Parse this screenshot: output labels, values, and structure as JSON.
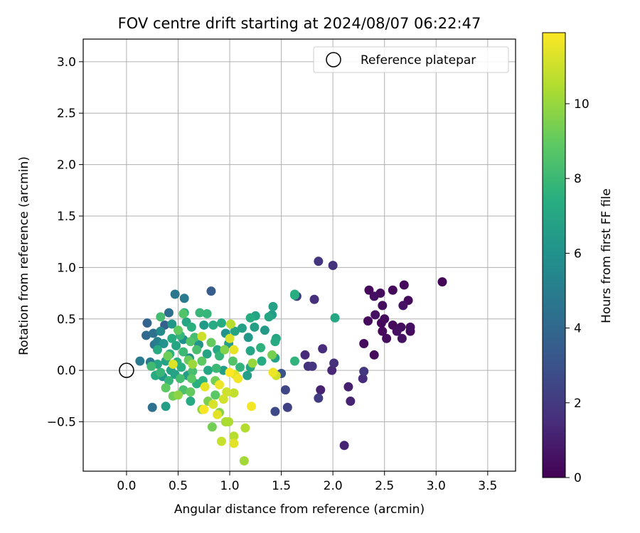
{
  "chart_data": {
    "type": "scatter",
    "title": "FOV centre drift starting at 2024/08/07 06:22:47",
    "xlabel": "Angular distance from reference (arcmin)",
    "ylabel": "Rotation from reference (arcmin)",
    "xlim": [
      -0.42,
      3.77
    ],
    "ylim": [
      -0.98,
      3.22
    ],
    "xticks": [
      "0.0",
      "0.5",
      "1.0",
      "1.5",
      "2.0",
      "2.5",
      "3.0",
      "3.5"
    ],
    "xtick_values": [
      0.0,
      0.5,
      1.0,
      1.5,
      2.0,
      2.5,
      3.0,
      3.5
    ],
    "yticks": [
      "−0.5",
      "0.0",
      "0.5",
      "1.0",
      "1.5",
      "2.0",
      "2.5",
      "3.0"
    ],
    "ytick_values": [
      -0.5,
      0.0,
      0.5,
      1.0,
      1.5,
      2.0,
      2.5,
      3.0
    ],
    "grid": true,
    "legend": {
      "placement": "top-right",
      "entries": [
        {
          "label": "Reference platepar",
          "marker": "open-circle"
        }
      ]
    },
    "reference_point": {
      "x": 0.0,
      "y": 0.0
    },
    "colorbar": {
      "label": "Hours from first FF file",
      "colormap": "viridis",
      "range": [
        0,
        11.9
      ],
      "ticks": [
        "0",
        "2",
        "4",
        "6",
        "8",
        "10"
      ],
      "tick_values": [
        0,
        2,
        4,
        6,
        8,
        10
      ]
    },
    "points": [
      {
        "x": 3.06,
        "y": 0.86,
        "h": 0.1
      },
      {
        "x": 2.35,
        "y": 0.78,
        "h": 0.3
      },
      {
        "x": 2.46,
        "y": 0.75,
        "h": 0.4
      },
      {
        "x": 2.58,
        "y": 0.78,
        "h": 0.2
      },
      {
        "x": 2.69,
        "y": 0.83,
        "h": 0.2
      },
      {
        "x": 2.4,
        "y": 0.72,
        "h": 0.5
      },
      {
        "x": 2.73,
        "y": 0.68,
        "h": 0.3
      },
      {
        "x": 2.48,
        "y": 0.63,
        "h": 0.4
      },
      {
        "x": 2.68,
        "y": 0.63,
        "h": 0.6
      },
      {
        "x": 2.41,
        "y": 0.54,
        "h": 0.5
      },
      {
        "x": 2.5,
        "y": 0.5,
        "h": 0.3
      },
      {
        "x": 2.34,
        "y": 0.48,
        "h": 0.3
      },
      {
        "x": 2.47,
        "y": 0.46,
        "h": 0.2
      },
      {
        "x": 2.58,
        "y": 0.44,
        "h": 0.3
      },
      {
        "x": 2.66,
        "y": 0.42,
        "h": 0.4
      },
      {
        "x": 2.75,
        "y": 0.42,
        "h": 0.5
      },
      {
        "x": 2.48,
        "y": 0.38,
        "h": 0.3
      },
      {
        "x": 2.62,
        "y": 0.38,
        "h": 0.5
      },
      {
        "x": 2.75,
        "y": 0.38,
        "h": 0.3
      },
      {
        "x": 2.52,
        "y": 0.31,
        "h": 0.4
      },
      {
        "x": 2.67,
        "y": 0.31,
        "h": 0.6
      },
      {
        "x": 2.3,
        "y": 0.26,
        "h": 0.3
      },
      {
        "x": 2.4,
        "y": 0.15,
        "h": 0.3
      },
      {
        "x": 1.86,
        "y": 1.06,
        "h": 1.8
      },
      {
        "x": 2.0,
        "y": 1.02,
        "h": 1.7
      },
      {
        "x": 1.65,
        "y": 0.72,
        "h": 2.0
      },
      {
        "x": 1.82,
        "y": 0.69,
        "h": 1.6
      },
      {
        "x": 1.9,
        "y": 0.21,
        "h": 1.5
      },
      {
        "x": 1.73,
        "y": 0.15,
        "h": 1.4
      },
      {
        "x": 2.01,
        "y": 0.07,
        "h": 1.6
      },
      {
        "x": 1.76,
        "y": 0.04,
        "h": 1.7
      },
      {
        "x": 1.8,
        "y": 0.04,
        "h": 1.8
      },
      {
        "x": 1.99,
        "y": 0.0,
        "h": 1.3
      },
      {
        "x": 2.3,
        "y": -0.01,
        "h": 1.9
      },
      {
        "x": 2.29,
        "y": -0.08,
        "h": 1.5
      },
      {
        "x": 2.15,
        "y": -0.16,
        "h": 1.0
      },
      {
        "x": 1.88,
        "y": -0.19,
        "h": 1.1
      },
      {
        "x": 2.17,
        "y": -0.3,
        "h": 1.2
      },
      {
        "x": 1.86,
        "y": -0.27,
        "h": 2.1
      },
      {
        "x": 2.11,
        "y": -0.73,
        "h": 1.2
      },
      {
        "x": 1.54,
        "y": -0.19,
        "h": 2.5
      },
      {
        "x": 1.56,
        "y": -0.36,
        "h": 2.3
      },
      {
        "x": 1.44,
        "y": -0.4,
        "h": 2.6
      },
      {
        "x": 1.5,
        "y": -0.03,
        "h": 3.0
      },
      {
        "x": 0.82,
        "y": 0.77,
        "h": 3.5
      },
      {
        "x": 0.47,
        "y": 0.74,
        "h": 4.7
      },
      {
        "x": 0.56,
        "y": 0.7,
        "h": 4.9
      },
      {
        "x": 0.41,
        "y": 0.56,
        "h": 4.3
      },
      {
        "x": 0.2,
        "y": 0.46,
        "h": 3.8
      },
      {
        "x": 0.37,
        "y": 0.44,
        "h": 3.6
      },
      {
        "x": 0.19,
        "y": 0.34,
        "h": 4.1
      },
      {
        "x": 0.26,
        "y": 0.36,
        "h": 4.4
      },
      {
        "x": 0.27,
        "y": 0.25,
        "h": 4.6
      },
      {
        "x": 0.13,
        "y": 0.09,
        "h": 4.9
      },
      {
        "x": 0.23,
        "y": 0.08,
        "h": 4.8
      },
      {
        "x": 0.25,
        "y": -0.36,
        "h": 4.4
      },
      {
        "x": 0.38,
        "y": -0.35,
        "h": 6.6
      },
      {
        "x": 0.33,
        "y": 0.52,
        "h": 8.2
      },
      {
        "x": 1.63,
        "y": 0.74,
        "h": 7.4
      },
      {
        "x": 1.63,
        "y": 0.73,
        "h": 7.2
      },
      {
        "x": 1.42,
        "y": 0.62,
        "h": 6.8
      },
      {
        "x": 1.38,
        "y": 0.52,
        "h": 7.0
      },
      {
        "x": 1.41,
        "y": 0.54,
        "h": 6.5
      },
      {
        "x": 1.2,
        "y": 0.51,
        "h": 7.3
      },
      {
        "x": 1.25,
        "y": 0.53,
        "h": 6.9
      },
      {
        "x": 2.02,
        "y": 0.51,
        "h": 7.1
      },
      {
        "x": 1.12,
        "y": 0.41,
        "h": 6.7
      },
      {
        "x": 1.24,
        "y": 0.42,
        "h": 6.6
      },
      {
        "x": 1.34,
        "y": 0.39,
        "h": 6.4
      },
      {
        "x": 1.45,
        "y": 0.31,
        "h": 7.0
      },
      {
        "x": 1.44,
        "y": 0.28,
        "h": 7.2
      },
      {
        "x": 1.3,
        "y": 0.22,
        "h": 7.6
      },
      {
        "x": 1.2,
        "y": 0.19,
        "h": 7.0
      },
      {
        "x": 1.44,
        "y": 0.12,
        "h": 6.8
      },
      {
        "x": 1.31,
        "y": 0.09,
        "h": 7.3
      },
      {
        "x": 1.63,
        "y": 0.09,
        "h": 7.7
      },
      {
        "x": 1.17,
        "y": -0.05,
        "h": 6.6
      },
      {
        "x": 1.05,
        "y": 0.38,
        "h": 6.9
      },
      {
        "x": 0.92,
        "y": 0.46,
        "h": 7.3
      },
      {
        "x": 0.78,
        "y": 0.55,
        "h": 7.8
      },
      {
        "x": 0.71,
        "y": 0.56,
        "h": 7.9
      },
      {
        "x": 0.55,
        "y": 0.55,
        "h": 8.6
      },
      {
        "x": 0.63,
        "y": 0.42,
        "h": 7.5
      },
      {
        "x": 0.84,
        "y": 0.44,
        "h": 7.2
      },
      {
        "x": 0.75,
        "y": 0.44,
        "h": 6.4
      },
      {
        "x": 0.96,
        "y": 0.36,
        "h": 6.1
      },
      {
        "x": 1.18,
        "y": 0.32,
        "h": 6.3
      },
      {
        "x": 0.99,
        "y": 0.26,
        "h": 6.6
      },
      {
        "x": 0.82,
        "y": 0.27,
        "h": 9.0
      },
      {
        "x": 0.66,
        "y": 0.32,
        "h": 8.2
      },
      {
        "x": 0.52,
        "y": 0.34,
        "h": 7.8
      },
      {
        "x": 0.44,
        "y": 0.31,
        "h": 7.3
      },
      {
        "x": 0.48,
        "y": 0.24,
        "h": 6.9
      },
      {
        "x": 0.36,
        "y": 0.26,
        "h": 6.0
      },
      {
        "x": 0.3,
        "y": 0.2,
        "h": 7.2
      },
      {
        "x": 0.42,
        "y": 0.16,
        "h": 7.6
      },
      {
        "x": 0.55,
        "y": 0.18,
        "h": 8.0
      },
      {
        "x": 0.68,
        "y": 0.2,
        "h": 8.4
      },
      {
        "x": 0.78,
        "y": 0.16,
        "h": 6.9
      },
      {
        "x": 0.88,
        "y": 0.2,
        "h": 7.1
      },
      {
        "x": 0.9,
        "y": 0.14,
        "h": 7.8
      },
      {
        "x": 1.03,
        "y": 0.09,
        "h": 8.6
      },
      {
        "x": 0.73,
        "y": 0.09,
        "h": 8.9
      },
      {
        "x": 0.6,
        "y": 0.1,
        "h": 9.1
      },
      {
        "x": 0.49,
        "y": 0.08,
        "h": 7.5
      },
      {
        "x": 0.38,
        "y": 0.09,
        "h": 6.8
      },
      {
        "x": 0.3,
        "y": 0.06,
        "h": 7.0
      },
      {
        "x": 0.24,
        "y": 0.04,
        "h": 8.1
      },
      {
        "x": 0.33,
        "y": -0.02,
        "h": 7.9
      },
      {
        "x": 0.43,
        "y": 0.0,
        "h": 6.7
      },
      {
        "x": 0.53,
        "y": 0.03,
        "h": 7.4
      },
      {
        "x": 0.64,
        "y": -0.01,
        "h": 8.3
      },
      {
        "x": 0.79,
        "y": 0.0,
        "h": 7.1
      },
      {
        "x": 0.94,
        "y": 0.0,
        "h": 6.6
      },
      {
        "x": 1.1,
        "y": 0.03,
        "h": 7.7
      },
      {
        "x": 1.2,
        "y": 0.03,
        "h": 6.9
      },
      {
        "x": 0.28,
        "y": -0.05,
        "h": 7.3
      },
      {
        "x": 0.41,
        "y": -0.1,
        "h": 7.8
      },
      {
        "x": 0.52,
        "y": -0.08,
        "h": 8.2
      },
      {
        "x": 0.63,
        "y": -0.08,
        "h": 8.8
      },
      {
        "x": 0.74,
        "y": -0.1,
        "h": 7.6
      },
      {
        "x": 0.86,
        "y": -0.1,
        "h": 9.3
      },
      {
        "x": 0.38,
        "y": -0.17,
        "h": 8.9
      },
      {
        "x": 0.45,
        "y": -0.25,
        "h": 9.2
      },
      {
        "x": 0.55,
        "y": -0.19,
        "h": 8.4
      },
      {
        "x": 0.62,
        "y": -0.21,
        "h": 9.0
      },
      {
        "x": 0.68,
        "y": -0.13,
        "h": 7.5
      },
      {
        "x": 0.62,
        "y": -0.3,
        "h": 7.2
      },
      {
        "x": 0.73,
        "y": -0.38,
        "h": 9.9
      },
      {
        "x": 0.79,
        "y": -0.3,
        "h": 9.5
      },
      {
        "x": 0.86,
        "y": -0.24,
        "h": 8.8
      },
      {
        "x": 0.83,
        "y": -0.55,
        "h": 9.3
      },
      {
        "x": 0.9,
        "y": -0.41,
        "h": 9.7
      },
      {
        "x": 0.96,
        "y": -0.5,
        "h": 10.3
      },
      {
        "x": 0.99,
        "y": -0.5,
        "h": 10.4
      },
      {
        "x": 0.92,
        "y": -0.69,
        "h": 10.9
      },
      {
        "x": 1.04,
        "y": -0.64,
        "h": 10.6
      },
      {
        "x": 1.15,
        "y": -0.56,
        "h": 10.5
      },
      {
        "x": 1.14,
        "y": -0.88,
        "h": 10.2
      },
      {
        "x": 1.04,
        "y": -0.71,
        "h": 11.4
      },
      {
        "x": 1.21,
        "y": -0.35,
        "h": 11.7
      },
      {
        "x": 0.97,
        "y": -0.21,
        "h": 11.0
      },
      {
        "x": 1.04,
        "y": -0.22,
        "h": 10.8
      },
      {
        "x": 0.9,
        "y": -0.14,
        "h": 11.6
      },
      {
        "x": 0.76,
        "y": -0.16,
        "h": 11.5
      },
      {
        "x": 0.75,
        "y": -0.38,
        "h": 11.8
      },
      {
        "x": 0.84,
        "y": -0.33,
        "h": 11.2
      },
      {
        "x": 0.88,
        "y": -0.43,
        "h": 11.4
      },
      {
        "x": 0.94,
        "y": -0.28,
        "h": 11.1
      },
      {
        "x": 1.0,
        "y": -0.02,
        "h": 11.9
      },
      {
        "x": 1.05,
        "y": -0.04,
        "h": 11.3
      },
      {
        "x": 1.08,
        "y": -0.08,
        "h": 11.7
      },
      {
        "x": 1.42,
        "y": -0.02,
        "h": 11.6
      },
      {
        "x": 1.45,
        "y": -0.05,
        "h": 11.0
      },
      {
        "x": 1.01,
        "y": 0.45,
        "h": 10.6
      },
      {
        "x": 1.0,
        "y": 0.31,
        "h": 11.2
      },
      {
        "x": 1.04,
        "y": 0.2,
        "h": 11.5
      },
      {
        "x": 0.73,
        "y": 0.33,
        "h": 11.0
      },
      {
        "x": 0.45,
        "y": 0.06,
        "h": 11.3
      },
      {
        "x": 0.5,
        "y": -0.24,
        "h": 9.8
      },
      {
        "x": 1.22,
        "y": 0.07,
        "h": 10.0
      },
      {
        "x": 1.41,
        "y": 0.15,
        "h": 9.4
      },
      {
        "x": 0.95,
        "y": 0.2,
        "h": 9.6
      },
      {
        "x": 0.64,
        "y": 0.06,
        "h": 10.1
      },
      {
        "x": 0.4,
        "y": 0.14,
        "h": 9.2
      },
      {
        "x": 0.5,
        "y": 0.39,
        "h": 9.0
      },
      {
        "x": 0.62,
        "y": 0.28,
        "h": 8.6
      },
      {
        "x": 0.87,
        "y": 0.02,
        "h": 8.0
      },
      {
        "x": 0.56,
        "y": 0.56,
        "h": 7.4
      },
      {
        "x": 0.58,
        "y": 0.47,
        "h": 7.0
      },
      {
        "x": 0.44,
        "y": 0.45,
        "h": 6.3
      },
      {
        "x": 0.33,
        "y": 0.38,
        "h": 5.6
      },
      {
        "x": 0.3,
        "y": 0.28,
        "h": 5.1
      },
      {
        "x": 0.55,
        "y": 0.3,
        "h": 5.9
      },
      {
        "x": 0.7,
        "y": 0.25,
        "h": 6.1
      },
      {
        "x": 0.59,
        "y": -0.05,
        "h": 6.5
      },
      {
        "x": 0.47,
        "y": -0.04,
        "h": 6.8
      },
      {
        "x": 0.61,
        "y": 0.12,
        "h": 5.8
      },
      {
        "x": 0.35,
        "y": -0.06,
        "h": 6.2
      }
    ]
  }
}
